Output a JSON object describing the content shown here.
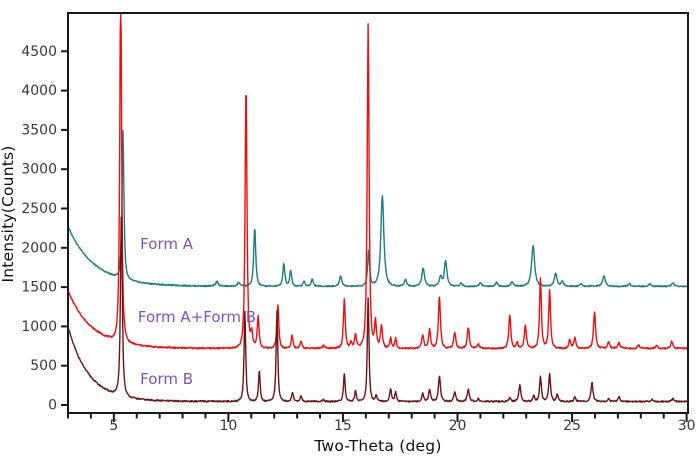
{
  "figure_type": "XRD powder diffraction pattern overlay",
  "axes": {
    "x_title": "Two-Theta (deg)",
    "y_title": "Intensity(Counts)",
    "x_major_ticks": [
      5,
      10,
      15,
      20,
      25,
      30
    ],
    "x_minor_tick_step": 1,
    "y_major_ticks": [
      0,
      500,
      1000,
      1500,
      2000,
      2500,
      3000,
      3500,
      4000,
      4500
    ],
    "tick_label_color": "#3a3a3a",
    "frame_color": "#1a1a1a"
  },
  "annotation_color": "#7d53c1",
  "chart_data": {
    "type": "line",
    "title": "",
    "xlabel": "Two-Theta (deg)",
    "ylabel": "Intensity(Counts)",
    "xlim": [
      3,
      30.06
    ],
    "ylim": [
      -100,
      4990
    ],
    "grid": false,
    "legend": "inline purple labels next to each trace",
    "peak_columns": [
      "two_theta_deg",
      "height_above_baseline_counts",
      "hwhm_deg"
    ],
    "series": [
      {
        "name": "Form A",
        "color": "#177f7b",
        "baseline": 1510,
        "bg_amp": 760,
        "bg_tau": 1.15,
        "noise": 8,
        "seed": 3,
        "label": {
          "text": "Form A",
          "x": 6.15,
          "y": 2040
        },
        "peaks": [
          [
            5.4,
            1890,
            0.055
          ],
          [
            9.5,
            60,
            0.07
          ],
          [
            10.45,
            50,
            0.07
          ],
          [
            11.15,
            740,
            0.06
          ],
          [
            12.42,
            290,
            0.06
          ],
          [
            12.72,
            195,
            0.06
          ],
          [
            13.3,
            60,
            0.06
          ],
          [
            13.66,
            90,
            0.06
          ],
          [
            14.9,
            130,
            0.07
          ],
          [
            16.12,
            440,
            0.06
          ],
          [
            16.72,
            1150,
            0.09
          ],
          [
            17.73,
            85,
            0.07
          ],
          [
            18.5,
            225,
            0.08
          ],
          [
            19.26,
            115,
            0.07
          ],
          [
            19.48,
            320,
            0.08
          ],
          [
            20.15,
            40,
            0.07
          ],
          [
            21.0,
            45,
            0.07
          ],
          [
            21.7,
            50,
            0.07
          ],
          [
            22.38,
            55,
            0.07
          ],
          [
            23.3,
            520,
            0.09
          ],
          [
            24.28,
            165,
            0.08
          ],
          [
            24.57,
            60,
            0.07
          ],
          [
            25.4,
            35,
            0.07
          ],
          [
            26.39,
            135,
            0.08
          ],
          [
            27.5,
            35,
            0.07
          ],
          [
            28.4,
            30,
            0.07
          ],
          [
            29.4,
            45,
            0.07
          ]
        ]
      },
      {
        "name": "Form A+Form B",
        "color": "#f20d0d",
        "baseline": 720,
        "bg_amp": 730,
        "bg_tau": 1.05,
        "noise": 10,
        "seed": 7,
        "label": {
          "text": "Form A+Form B",
          "x": 6.05,
          "y": 1105
        },
        "peaks": [
          [
            5.3,
            4600,
            0.055
          ],
          [
            10.77,
            3340,
            0.055
          ],
          [
            11.02,
            190,
            0.055
          ],
          [
            11.3,
            400,
            0.055
          ],
          [
            12.16,
            560,
            0.055
          ],
          [
            12.78,
            170,
            0.055
          ],
          [
            13.17,
            90,
            0.055
          ],
          [
            14.15,
            35,
            0.06
          ],
          [
            15.06,
            620,
            0.055
          ],
          [
            15.35,
            80,
            0.05
          ],
          [
            15.55,
            180,
            0.05
          ],
          [
            16.1,
            4120,
            0.055
          ],
          [
            16.42,
            330,
            0.055
          ],
          [
            16.68,
            280,
            0.06
          ],
          [
            17.08,
            130,
            0.05
          ],
          [
            17.3,
            130,
            0.05
          ],
          [
            18.48,
            170,
            0.06
          ],
          [
            18.78,
            240,
            0.06
          ],
          [
            19.21,
            665,
            0.06
          ],
          [
            19.88,
            210,
            0.06
          ],
          [
            20.47,
            270,
            0.06
          ],
          [
            20.9,
            60,
            0.06
          ],
          [
            22.28,
            420,
            0.06
          ],
          [
            22.6,
            80,
            0.05
          ],
          [
            22.96,
            295,
            0.06
          ],
          [
            23.62,
            900,
            0.055
          ],
          [
            24.02,
            740,
            0.055
          ],
          [
            24.9,
            110,
            0.06
          ],
          [
            25.12,
            130,
            0.06
          ],
          [
            25.98,
            470,
            0.06
          ],
          [
            26.6,
            85,
            0.06
          ],
          [
            27.05,
            70,
            0.06
          ],
          [
            27.9,
            40,
            0.06
          ],
          [
            28.7,
            40,
            0.06
          ],
          [
            29.35,
            90,
            0.06
          ]
        ]
      },
      {
        "name": "Form B",
        "color": "#6d1516",
        "baseline": 45,
        "bg_amp": 950,
        "bg_tau": 0.9,
        "noise": 9,
        "seed": 11,
        "label": {
          "text": "Form B",
          "x": 6.15,
          "y": 320
        },
        "peaks": [
          [
            5.33,
            2360,
            0.055
          ],
          [
            10.72,
            1150,
            0.05
          ],
          [
            11.35,
            395,
            0.05
          ],
          [
            12.12,
            1150,
            0.05
          ],
          [
            12.8,
            120,
            0.05
          ],
          [
            13.17,
            75,
            0.05
          ],
          [
            14.15,
            25,
            0.05
          ],
          [
            15.06,
            355,
            0.05
          ],
          [
            15.55,
            135,
            0.05
          ],
          [
            16.1,
            1320,
            0.05
          ],
          [
            16.45,
            80,
            0.05
          ],
          [
            17.08,
            165,
            0.05
          ],
          [
            17.3,
            120,
            0.05
          ],
          [
            18.48,
            105,
            0.05
          ],
          [
            18.78,
            145,
            0.06
          ],
          [
            19.21,
            330,
            0.06
          ],
          [
            19.88,
            120,
            0.06
          ],
          [
            20.47,
            155,
            0.06
          ],
          [
            20.9,
            35,
            0.05
          ],
          [
            22.28,
            55,
            0.05
          ],
          [
            22.72,
            205,
            0.06
          ],
          [
            23.33,
            80,
            0.05
          ],
          [
            23.62,
            310,
            0.055
          ],
          [
            24.02,
            355,
            0.055
          ],
          [
            24.35,
            90,
            0.05
          ],
          [
            25.12,
            60,
            0.05
          ],
          [
            25.87,
            245,
            0.06
          ],
          [
            26.6,
            40,
            0.05
          ],
          [
            27.05,
            65,
            0.05
          ],
          [
            28.5,
            25,
            0.05
          ],
          [
            29.4,
            40,
            0.05
          ]
        ]
      }
    ]
  }
}
